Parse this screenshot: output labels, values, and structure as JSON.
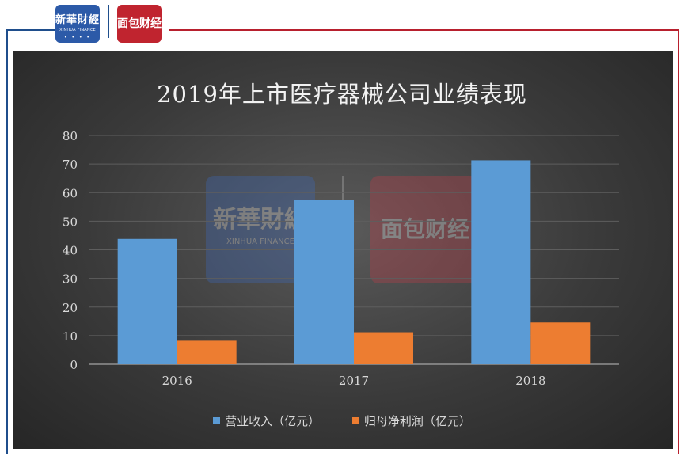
{
  "header": {
    "logo_left_cn": "新華財經",
    "logo_left_en": "XINHUA FINANCE",
    "logo_right_cn": "面包财经"
  },
  "colors": {
    "series1": "#5b9bd5",
    "series2": "#ed7d31",
    "panel_bg": "#3a3a3a"
  },
  "chart_data": {
    "type": "bar",
    "title": "2019年上市医疗器械公司业绩表现",
    "categories": [
      "2016",
      "2017",
      "2018"
    ],
    "series": [
      {
        "name": "营业收入（亿元）",
        "values": [
          43.8,
          57.5,
          71.3
        ]
      },
      {
        "name": "归母净利润（亿元）",
        "values": [
          8.2,
          11.2,
          14.6
        ]
      }
    ],
    "ylim": [
      0,
      80
    ],
    "yticks": [
      "0",
      "10",
      "20",
      "30",
      "40",
      "50",
      "60",
      "70",
      "80"
    ],
    "grid": true,
    "legend_position": "bottom"
  }
}
